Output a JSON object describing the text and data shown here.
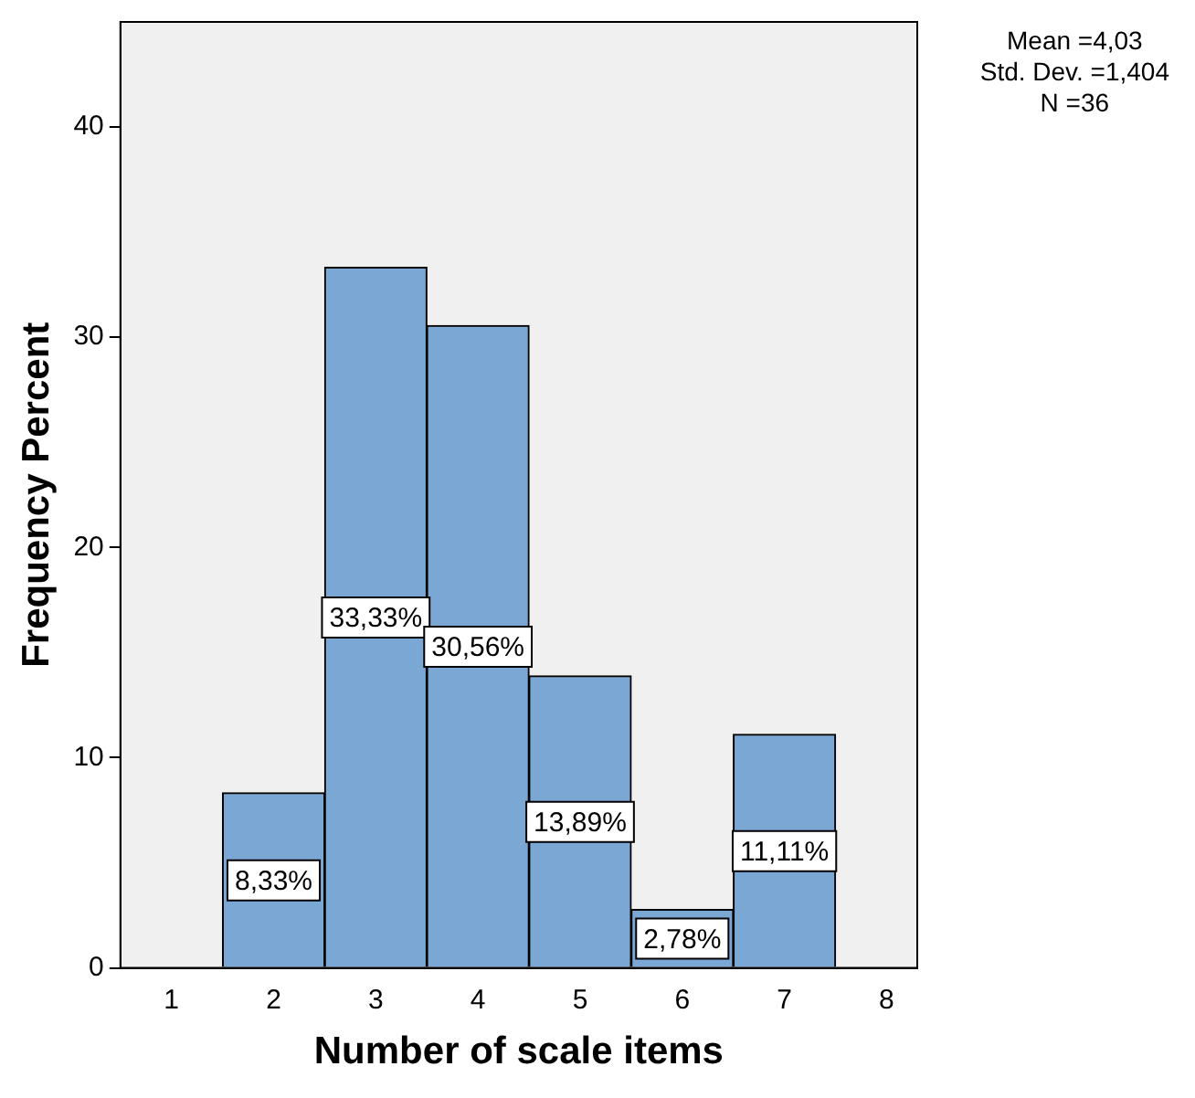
{
  "chart_data": {
    "type": "histogram",
    "xlabel": "Number of scale items",
    "ylabel": "Frequency Percent",
    "bins": [
      1.5,
      2.5,
      3.5,
      4.5,
      5.5,
      6.5,
      7.5
    ],
    "values": [
      8.33,
      33.33,
      30.56,
      13.89,
      2.78,
      11.11
    ],
    "value_labels": [
      "8,33%",
      "33,33%",
      "30,56%",
      "13,89%",
      "2,78%",
      "11,11%"
    ],
    "color": "#7ba7d4",
    "xlim": [
      0.5,
      8.3
    ],
    "xticks": [
      1,
      2,
      3,
      4,
      5,
      6,
      7,
      8
    ],
    "ylim": [
      0,
      45
    ],
    "yticks": [
      0,
      10,
      20,
      30,
      40
    ],
    "grid": false,
    "legend": false,
    "annotations": [
      "Mean =4,03",
      "Std. Dev. =1,404",
      "N =36"
    ]
  }
}
